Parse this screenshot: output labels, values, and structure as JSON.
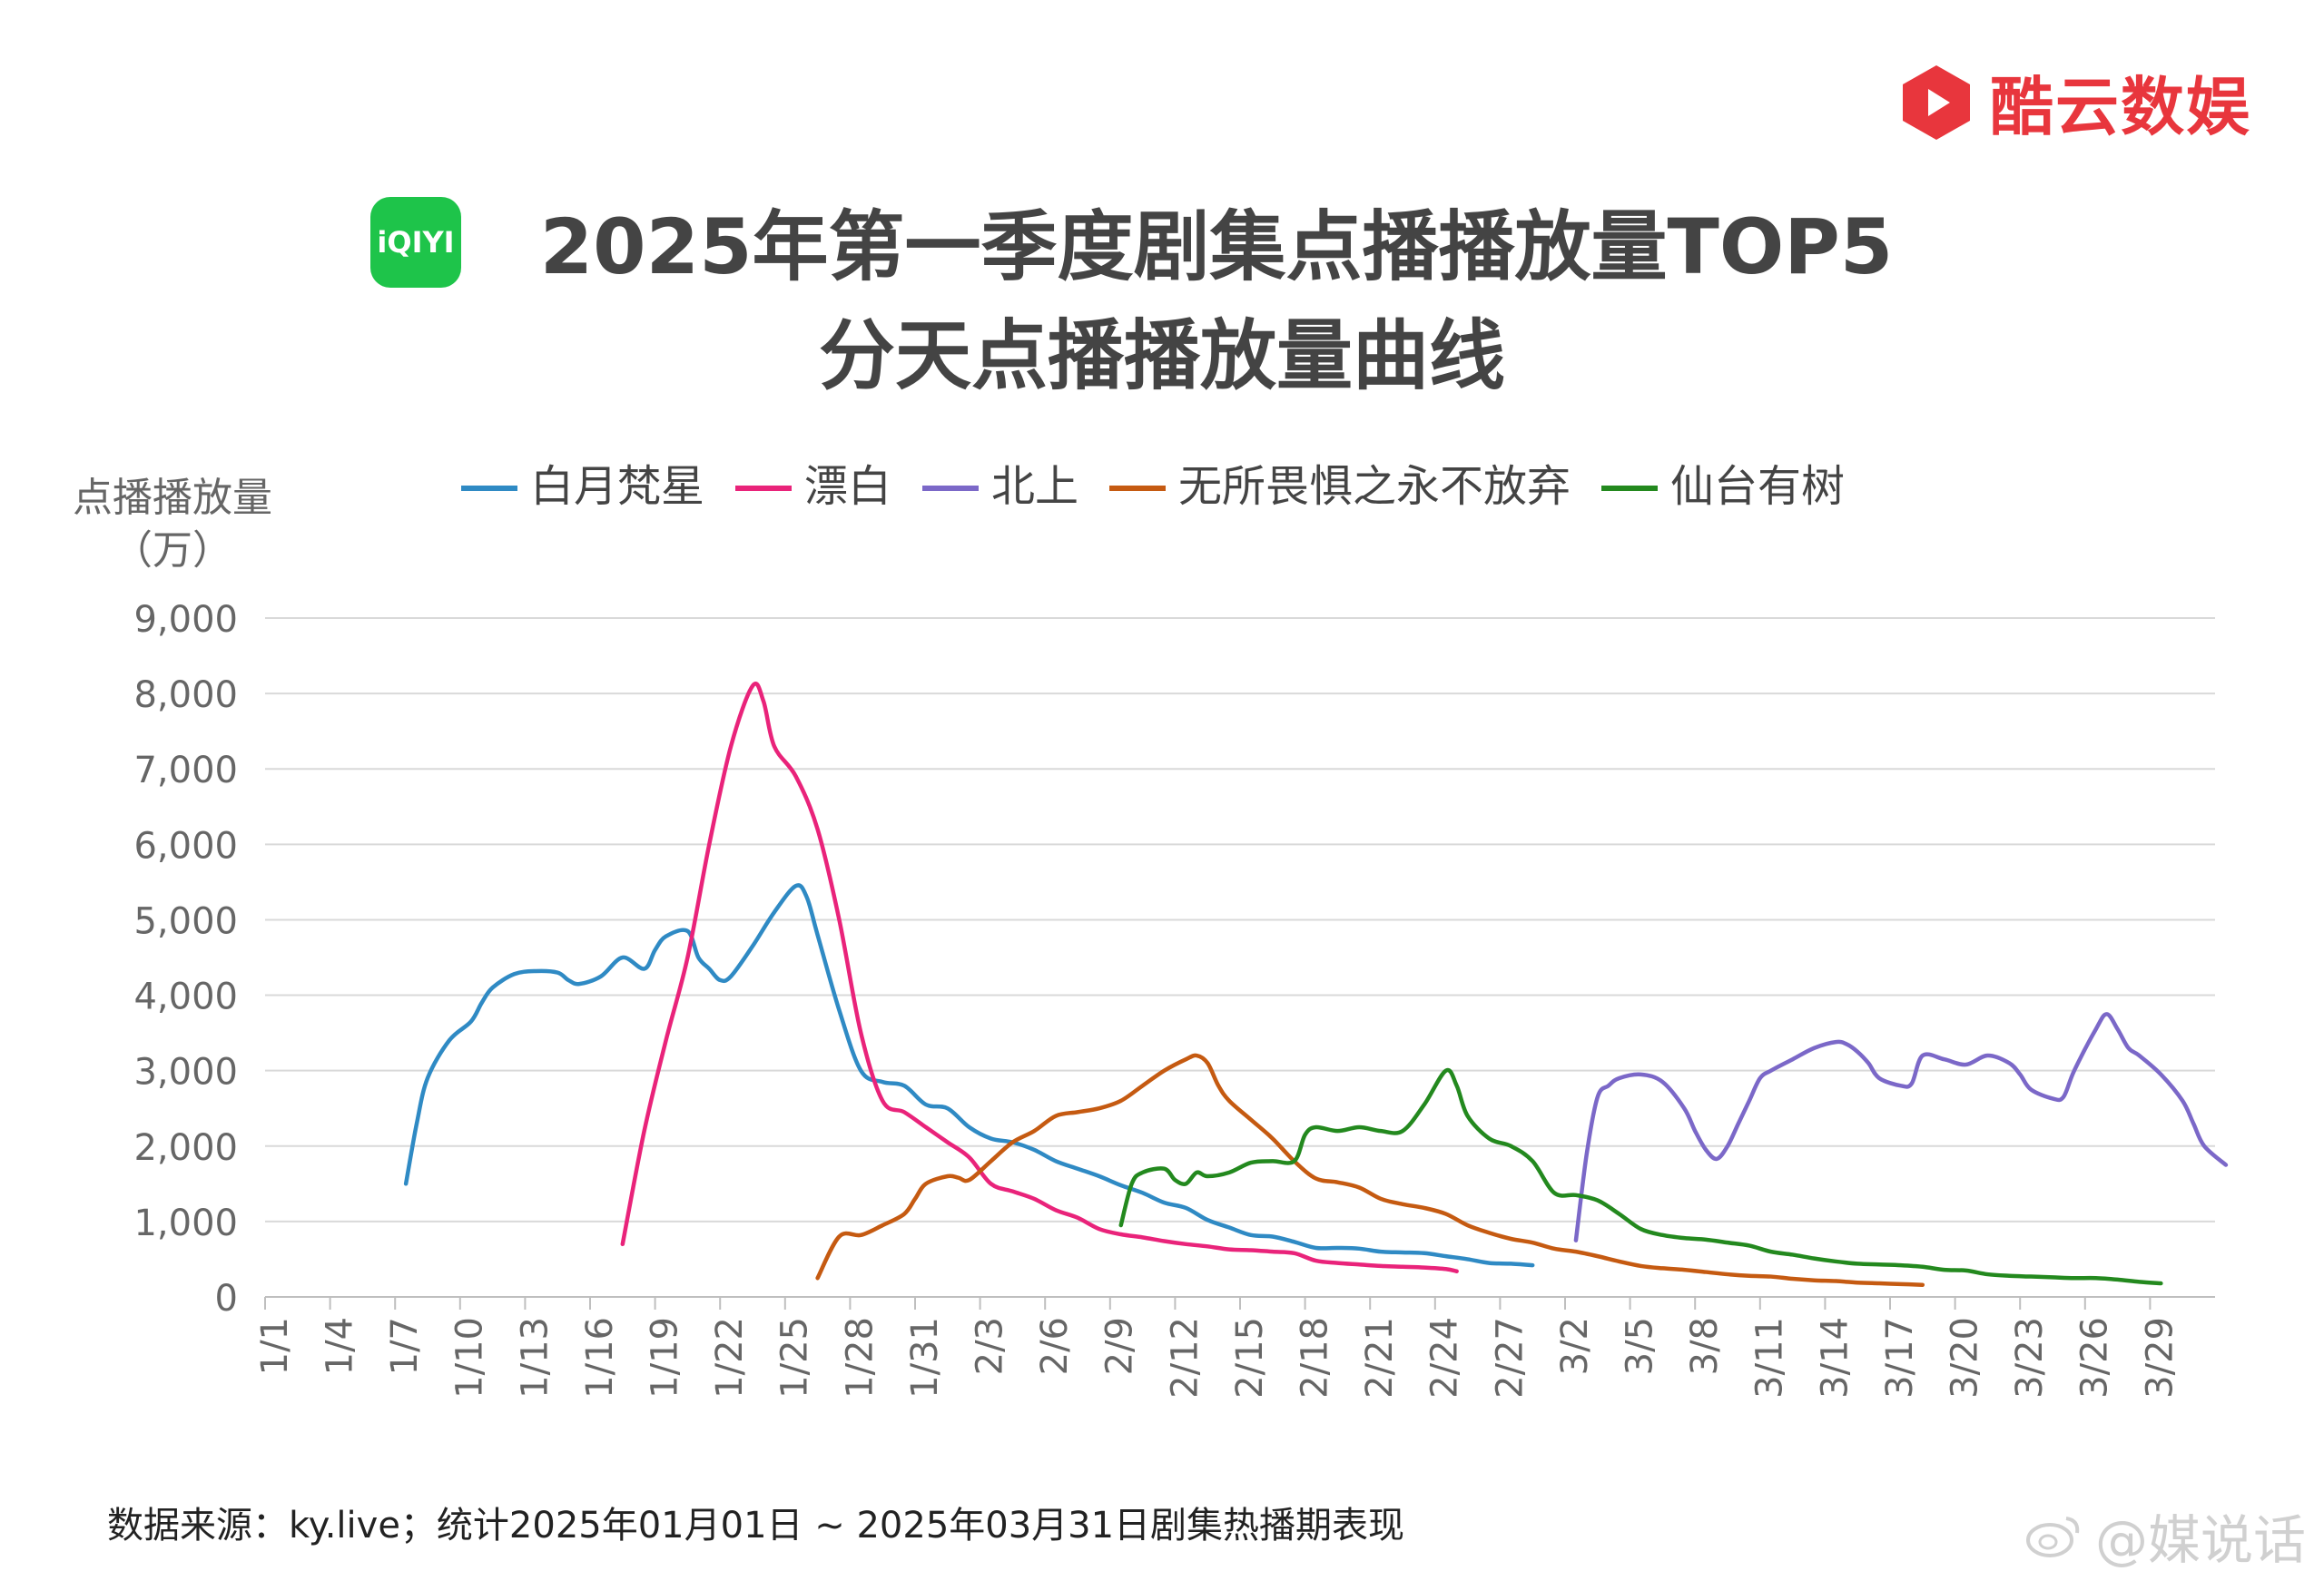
{
  "brand": {
    "name": "酷云数娱",
    "color": "#e8363d",
    "logo_icon": "kuyun-play-icon"
  },
  "title": {
    "line1": "2025年第一季度剧集点播播放量TOP5",
    "line2": "分天点播播放量曲线",
    "platform_badge": "iQIYI"
  },
  "source": "数据来源：ky.live；统计2025年01月01日 ~ 2025年03月31日剧集热播期表现",
  "watermark": "@媒说话",
  "chart_data": {
    "type": "line",
    "ylabel": "点播播放量",
    "yunit": "（万）",
    "ylim": [
      0,
      9000
    ],
    "yticks": [
      0,
      1000,
      2000,
      3000,
      4000,
      5000,
      6000,
      7000,
      8000,
      9000
    ],
    "ytick_labels": [
      "0",
      "1,000",
      "2,000",
      "3,000",
      "4,000",
      "5,000",
      "6,000",
      "7,000",
      "8,000",
      "9,000"
    ],
    "x_tick_labels": [
      "1/1",
      "1/4",
      "1/7",
      "1/10",
      "1/13",
      "1/16",
      "1/19",
      "1/22",
      "1/25",
      "1/28",
      "1/31",
      "2/3",
      "2/6",
      "2/9",
      "2/12",
      "2/15",
      "2/18",
      "2/21",
      "2/24",
      "2/27",
      "3/2",
      "3/5",
      "3/8",
      "3/11",
      "3/14",
      "3/17",
      "3/20",
      "3/23",
      "3/26",
      "3/29"
    ],
    "x_tick_days": [
      1,
      4,
      7,
      10,
      13,
      16,
      19,
      22,
      25,
      28,
      31,
      34,
      37,
      40,
      43,
      46,
      49,
      52,
      55,
      58,
      61,
      64,
      67,
      70,
      73,
      76,
      79,
      82,
      85,
      88
    ],
    "xlim": [
      1,
      90
    ],
    "grid": "horizontal",
    "legend_position": "top",
    "series": [
      {
        "name": "白月梵星",
        "color": "#2f8ac4",
        "points": [
          [
            7,
            1500
          ],
          [
            7.5,
            2300
          ],
          [
            8,
            2900
          ],
          [
            9,
            3400
          ],
          [
            10,
            3650
          ],
          [
            10.5,
            3900
          ],
          [
            11,
            4100
          ],
          [
            12,
            4280
          ],
          [
            13,
            4320
          ],
          [
            14,
            4300
          ],
          [
            14.5,
            4200
          ],
          [
            15,
            4150
          ],
          [
            16,
            4250
          ],
          [
            17,
            4500
          ],
          [
            18,
            4350
          ],
          [
            18.5,
            4600
          ],
          [
            19,
            4780
          ],
          [
            20,
            4850
          ],
          [
            20.5,
            4500
          ],
          [
            21,
            4350
          ],
          [
            21.5,
            4200
          ],
          [
            22,
            4250
          ],
          [
            23,
            4650
          ],
          [
            24,
            5100
          ],
          [
            25,
            5450
          ],
          [
            25.5,
            5300
          ],
          [
            26,
            4800
          ],
          [
            27,
            3800
          ],
          [
            28,
            3000
          ],
          [
            29,
            2850
          ],
          [
            30,
            2800
          ],
          [
            31,
            2550
          ],
          [
            32,
            2500
          ],
          [
            33,
            2250
          ],
          [
            34,
            2100
          ],
          [
            35,
            2050
          ],
          [
            36,
            1950
          ],
          [
            37,
            1800
          ],
          [
            38,
            1700
          ],
          [
            39,
            1600
          ],
          [
            40,
            1480
          ],
          [
            41,
            1380
          ],
          [
            42,
            1250
          ],
          [
            43,
            1180
          ],
          [
            44,
            1020
          ],
          [
            45,
            920
          ],
          [
            46,
            820
          ],
          [
            47,
            800
          ],
          [
            48,
            730
          ],
          [
            49,
            650
          ],
          [
            50,
            650
          ],
          [
            51,
            640
          ],
          [
            52,
            600
          ],
          [
            53,
            590
          ],
          [
            54,
            580
          ],
          [
            55,
            540
          ],
          [
            56,
            500
          ],
          [
            57,
            450
          ],
          [
            58,
            440
          ],
          [
            59,
            420
          ]
        ]
      },
      {
        "name": "漂白",
        "color": "#e9237a",
        "points": [
          [
            17,
            700
          ],
          [
            18,
            2200
          ],
          [
            19,
            3400
          ],
          [
            20,
            4500
          ],
          [
            21,
            6000
          ],
          [
            22,
            7300
          ],
          [
            23,
            8100
          ],
          [
            23.5,
            7900
          ],
          [
            24,
            7300
          ],
          [
            25,
            6900
          ],
          [
            26,
            6200
          ],
          [
            27,
            5000
          ],
          [
            28,
            3500
          ],
          [
            29,
            2600
          ],
          [
            30,
            2450
          ],
          [
            31,
            2250
          ],
          [
            32,
            2050
          ],
          [
            33,
            1850
          ],
          [
            34,
            1500
          ],
          [
            35,
            1400
          ],
          [
            36,
            1300
          ],
          [
            37,
            1150
          ],
          [
            38,
            1050
          ],
          [
            39,
            900
          ],
          [
            40,
            830
          ],
          [
            41,
            790
          ],
          [
            42,
            740
          ],
          [
            43,
            700
          ],
          [
            44,
            670
          ],
          [
            45,
            630
          ],
          [
            46,
            620
          ],
          [
            47,
            600
          ],
          [
            48,
            580
          ],
          [
            49,
            480
          ],
          [
            50,
            450
          ],
          [
            51,
            430
          ],
          [
            52,
            410
          ],
          [
            53,
            400
          ],
          [
            54,
            390
          ],
          [
            55,
            370
          ],
          [
            55.5,
            340
          ]
        ]
      },
      {
        "name": "北上",
        "color": "#7b68c8",
        "points": [
          [
            61,
            750
          ],
          [
            61.5,
            1900
          ],
          [
            62,
            2650
          ],
          [
            62.5,
            2800
          ],
          [
            63,
            2900
          ],
          [
            64,
            2950
          ],
          [
            65,
            2850
          ],
          [
            66,
            2500
          ],
          [
            66.5,
            2200
          ],
          [
            67,
            1950
          ],
          [
            67.5,
            1830
          ],
          [
            68,
            2000
          ],
          [
            68.5,
            2300
          ],
          [
            69,
            2600
          ],
          [
            69.5,
            2900
          ],
          [
            70,
            3000
          ],
          [
            71,
            3150
          ],
          [
            72,
            3300
          ],
          [
            73,
            3380
          ],
          [
            73.5,
            3350
          ],
          [
            74,
            3250
          ],
          [
            74.5,
            3100
          ],
          [
            75,
            2900
          ],
          [
            76,
            2800
          ],
          [
            76.5,
            2830
          ],
          [
            77,
            3200
          ],
          [
            78,
            3150
          ],
          [
            79,
            3080
          ],
          [
            80,
            3200
          ],
          [
            81,
            3100
          ],
          [
            81.5,
            2950
          ],
          [
            82,
            2750
          ],
          [
            83,
            2630
          ],
          [
            83.5,
            2650
          ],
          [
            84,
            3000
          ],
          [
            85,
            3550
          ],
          [
            85.5,
            3750
          ],
          [
            86,
            3550
          ],
          [
            86.5,
            3300
          ],
          [
            87,
            3200
          ],
          [
            88,
            2950
          ],
          [
            89,
            2600
          ],
          [
            89.5,
            2300
          ],
          [
            90,
            2000
          ],
          [
            91,
            1750
          ]
        ]
      },
      {
        "name": "无所畏惧之永不放弃",
        "color": "#c55a11",
        "points": [
          [
            26,
            250
          ],
          [
            27,
            800
          ],
          [
            28,
            820
          ],
          [
            29,
            950
          ],
          [
            30,
            1100
          ],
          [
            30.5,
            1300
          ],
          [
            31,
            1500
          ],
          [
            32,
            1600
          ],
          [
            32.5,
            1580
          ],
          [
            33,
            1550
          ],
          [
            34,
            1800
          ],
          [
            35,
            2050
          ],
          [
            36,
            2200
          ],
          [
            37,
            2400
          ],
          [
            38,
            2450
          ],
          [
            39,
            2500
          ],
          [
            40,
            2600
          ],
          [
            41,
            2800
          ],
          [
            42,
            3000
          ],
          [
            43,
            3150
          ],
          [
            43.5,
            3200
          ],
          [
            44,
            3100
          ],
          [
            44.5,
            2800
          ],
          [
            45,
            2600
          ],
          [
            46,
            2350
          ],
          [
            47,
            2100
          ],
          [
            48,
            1800
          ],
          [
            49,
            1570
          ],
          [
            50,
            1520
          ],
          [
            51,
            1450
          ],
          [
            52,
            1300
          ],
          [
            53,
            1230
          ],
          [
            54,
            1180
          ],
          [
            55,
            1100
          ],
          [
            56,
            950
          ],
          [
            57,
            850
          ],
          [
            58,
            770
          ],
          [
            59,
            720
          ],
          [
            60,
            640
          ],
          [
            61,
            600
          ],
          [
            62,
            540
          ],
          [
            63,
            470
          ],
          [
            64,
            410
          ],
          [
            65,
            380
          ],
          [
            66,
            360
          ],
          [
            67,
            330
          ],
          [
            68,
            300
          ],
          [
            69,
            280
          ],
          [
            70,
            270
          ],
          [
            71,
            240
          ],
          [
            72,
            220
          ],
          [
            73,
            210
          ],
          [
            74,
            190
          ],
          [
            75,
            180
          ],
          [
            76,
            170
          ],
          [
            77,
            160
          ]
        ]
      },
      {
        "name": "仙台有树",
        "color": "#23891e",
        "points": [
          [
            40,
            950
          ],
          [
            40.5,
            1500
          ],
          [
            41,
            1650
          ],
          [
            42,
            1700
          ],
          [
            42.5,
            1550
          ],
          [
            43,
            1500
          ],
          [
            43.5,
            1650
          ],
          [
            44,
            1600
          ],
          [
            45,
            1650
          ],
          [
            46,
            1780
          ],
          [
            47,
            1800
          ],
          [
            48,
            1800
          ],
          [
            48.5,
            2150
          ],
          [
            49,
            2250
          ],
          [
            50,
            2200
          ],
          [
            51,
            2250
          ],
          [
            52,
            2200
          ],
          [
            53,
            2200
          ],
          [
            54,
            2550
          ],
          [
            55,
            3000
          ],
          [
            55.5,
            2800
          ],
          [
            56,
            2400
          ],
          [
            57,
            2100
          ],
          [
            58,
            2000
          ],
          [
            59,
            1800
          ],
          [
            60,
            1380
          ],
          [
            61,
            1350
          ],
          [
            62,
            1280
          ],
          [
            63,
            1100
          ],
          [
            64,
            900
          ],
          [
            65,
            820
          ],
          [
            66,
            780
          ],
          [
            67,
            760
          ],
          [
            68,
            720
          ],
          [
            69,
            680
          ],
          [
            70,
            600
          ],
          [
            71,
            560
          ],
          [
            72,
            510
          ],
          [
            73,
            470
          ],
          [
            74,
            440
          ],
          [
            75,
            430
          ],
          [
            76,
            420
          ],
          [
            77,
            400
          ],
          [
            78,
            360
          ],
          [
            79,
            350
          ],
          [
            80,
            300
          ],
          [
            81,
            280
          ],
          [
            82,
            270
          ],
          [
            83,
            260
          ],
          [
            84,
            250
          ],
          [
            85,
            250
          ],
          [
            86,
            230
          ],
          [
            87,
            200
          ],
          [
            88,
            180
          ]
        ]
      }
    ]
  }
}
